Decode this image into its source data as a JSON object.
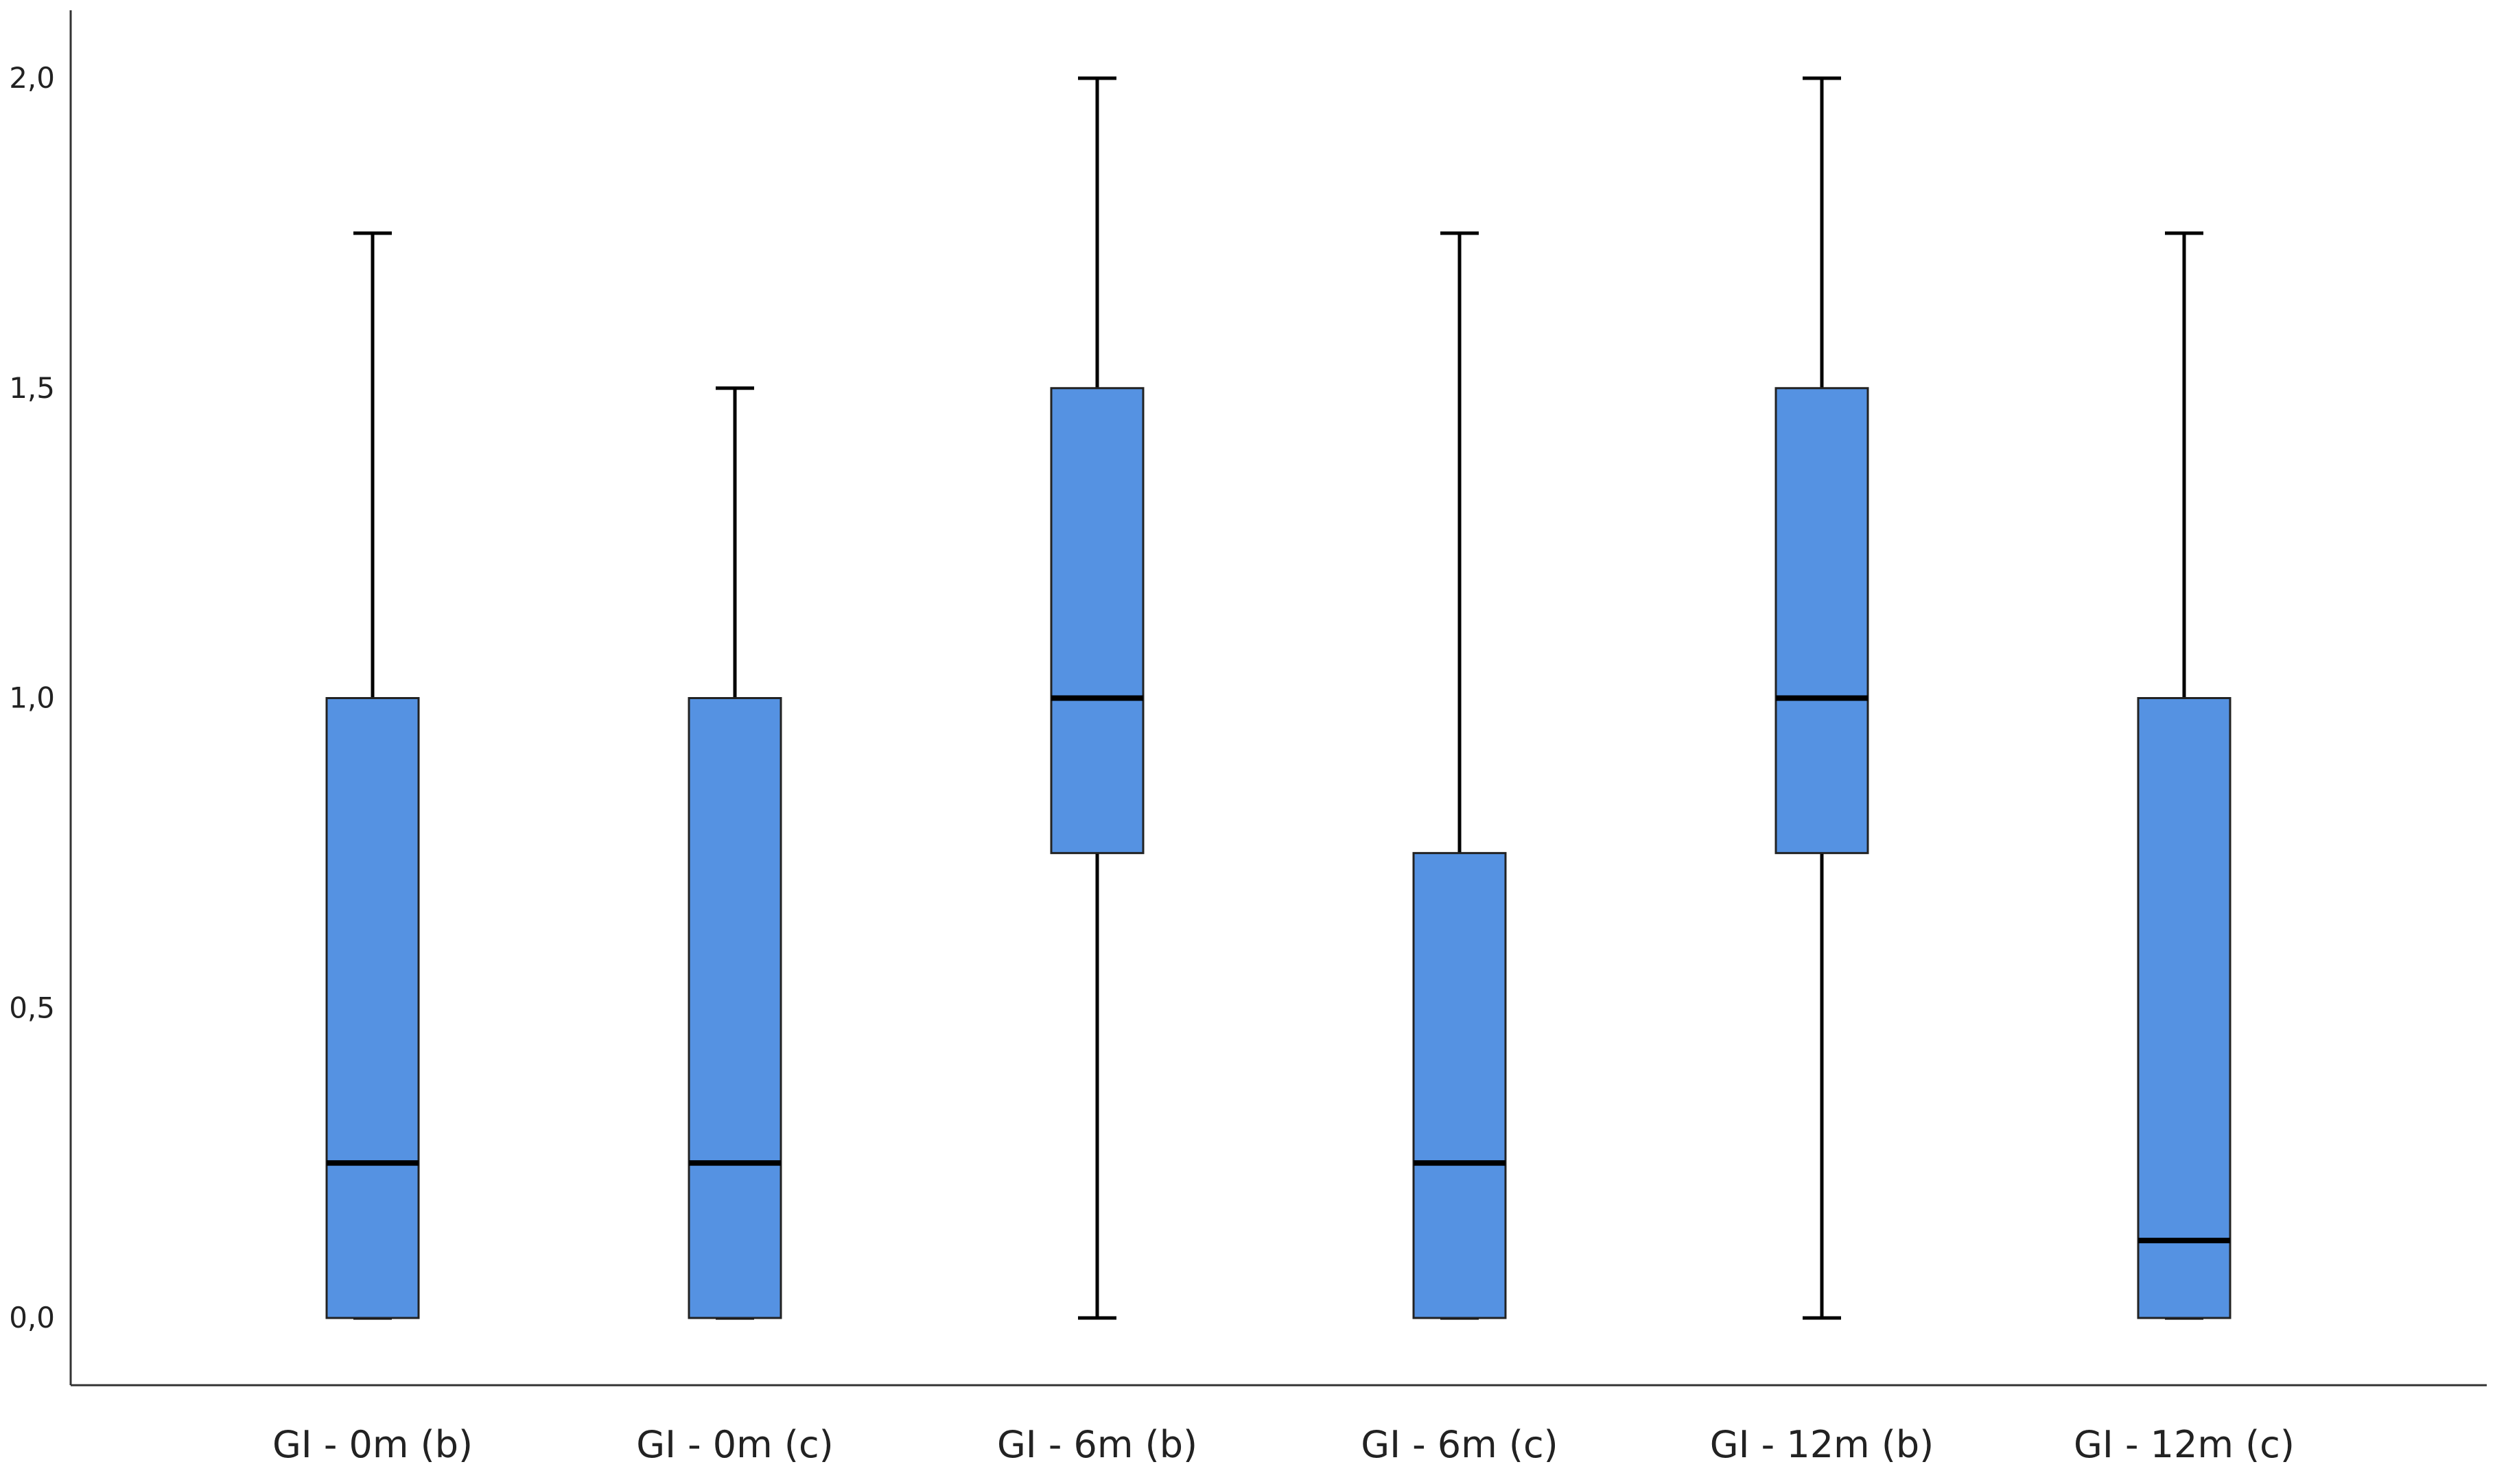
{
  "chart_data": {
    "type": "boxplot",
    "title": "",
    "xlabel": "",
    "ylabel": "",
    "ylim": [
      0,
      2.0
    ],
    "yticks": [
      {
        "value": 0.0,
        "label": "0,0"
      },
      {
        "value": 0.5,
        "label": "0,5"
      },
      {
        "value": 1.0,
        "label": "1,0"
      },
      {
        "value": 1.5,
        "label": "1,5"
      },
      {
        "value": 2.0,
        "label": "2,0"
      }
    ],
    "grid": false,
    "colors": {
      "box_fill": "#5592E2",
      "box_stroke": "#222222",
      "median": "#000000",
      "whisker": "#000000",
      "axis": "#333333"
    },
    "categories": [
      "GI - 0m (b)",
      "GI - 0m (c)",
      "GI - 6m (b)",
      "GI - 6m (c)",
      "GI - 12m (b)",
      "GI - 12m (c)"
    ],
    "boxes": [
      {
        "min": 0.0,
        "q1": 0.0,
        "median": 0.25,
        "q3": 1.0,
        "max": 1.75
      },
      {
        "min": 0.0,
        "q1": 0.0,
        "median": 0.25,
        "q3": 1.0,
        "max": 1.5
      },
      {
        "min": 0.0,
        "q1": 0.75,
        "median": 1.0,
        "q3": 1.5,
        "max": 2.0
      },
      {
        "min": 0.0,
        "q1": 0.0,
        "median": 0.25,
        "q3": 0.75,
        "max": 1.75
      },
      {
        "min": 0.0,
        "q1": 0.75,
        "median": 1.0,
        "q3": 1.5,
        "max": 2.0
      },
      {
        "min": 0.0,
        "q1": 0.0,
        "median": 0.125,
        "q3": 1.0,
        "max": 1.75
      }
    ]
  }
}
